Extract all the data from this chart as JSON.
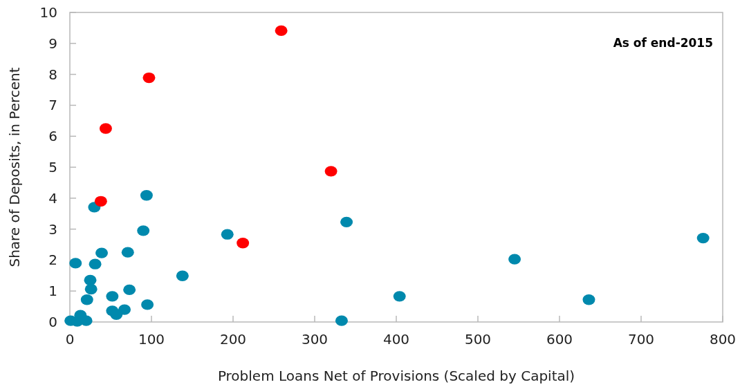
{
  "chart_data": {
    "type": "scatter",
    "xlabel": "Problem Loans Net of Provisions (Scaled by Capital)",
    "ylabel": "Share of Deposits, in Percent",
    "annotations": [
      "As of end-2015"
    ],
    "xlim": [
      0,
      800
    ],
    "xticks": [
      0,
      100,
      200,
      300,
      400,
      500,
      600,
      700,
      800
    ],
    "ylim": [
      0,
      10
    ],
    "yticks": [
      0,
      1,
      2,
      3,
      4,
      5,
      6,
      7,
      8,
      9,
      10
    ],
    "grid": false,
    "marker": "circle",
    "series": [
      {
        "color": "#0089ad",
        "x": [
          30,
          94,
          90,
          39,
          71,
          7,
          31,
          25,
          26,
          21,
          52,
          73,
          95,
          52,
          67,
          57,
          13,
          1,
          9,
          20,
          138,
          193,
          339,
          333,
          404,
          545,
          636,
          776
        ],
        "values": [
          3.71,
          4.09,
          2.95,
          2.23,
          2.25,
          1.9,
          1.87,
          1.35,
          1.06,
          0.72,
          0.83,
          1.04,
          0.56,
          0.36,
          0.4,
          0.24,
          0.22,
          0.04,
          0.02,
          0.04,
          1.49,
          2.83,
          3.23,
          0.04,
          0.83,
          2.03,
          0.72,
          2.71
        ]
      },
      {
        "color": "#ff0000",
        "x": [
          38,
          44,
          97,
          259,
          320,
          212
        ],
        "values": [
          3.9,
          6.25,
          7.89,
          9.41,
          4.87,
          2.55
        ]
      }
    ]
  }
}
